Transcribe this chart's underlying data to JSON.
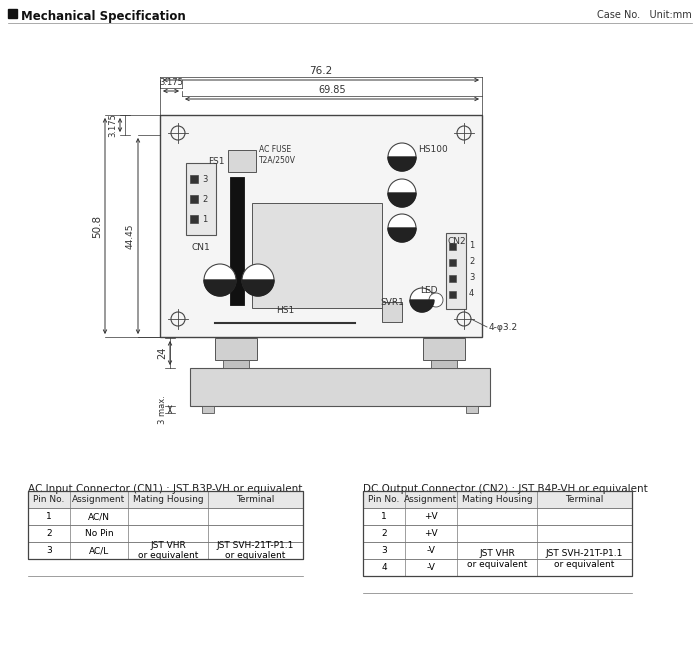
{
  "title": "Mechanical Specification",
  "case_unit": "Case No.   Unit:mm",
  "bg_color": "#ffffff",
  "dim_76_2": "76.2",
  "dim_69_85": "69.85",
  "dim_3_175_h": "3.175",
  "dim_3_175_v": "3.175",
  "dim_50_8": "50.8",
  "dim_44_45": "44.45",
  "dim_24": "24",
  "dim_3max": "3 max.",
  "dim_4phi32": "4-φ3.2",
  "label_FS1": "FS1",
  "label_ACFUSE": "AC FUSE\nT2A/250V",
  "label_HS100": "HS100",
  "label_CN1": "CN1",
  "label_CN2": "CN2",
  "label_HS1": "HS1",
  "label_SVR1": "SVR1",
  "label_LED": "LED",
  "ac_title": "AC Input Connector (CN1) : JST B3P-VH or equivalent",
  "dc_title": "DC Output Connector (CN2) : JST B4P-VH or equivalent",
  "ac_headers": [
    "Pin No.",
    "Assignment",
    "Mating Housing",
    "Terminal"
  ],
  "dc_headers": [
    "Pin No.",
    "Assignment",
    "Mating Housing",
    "Terminal"
  ]
}
